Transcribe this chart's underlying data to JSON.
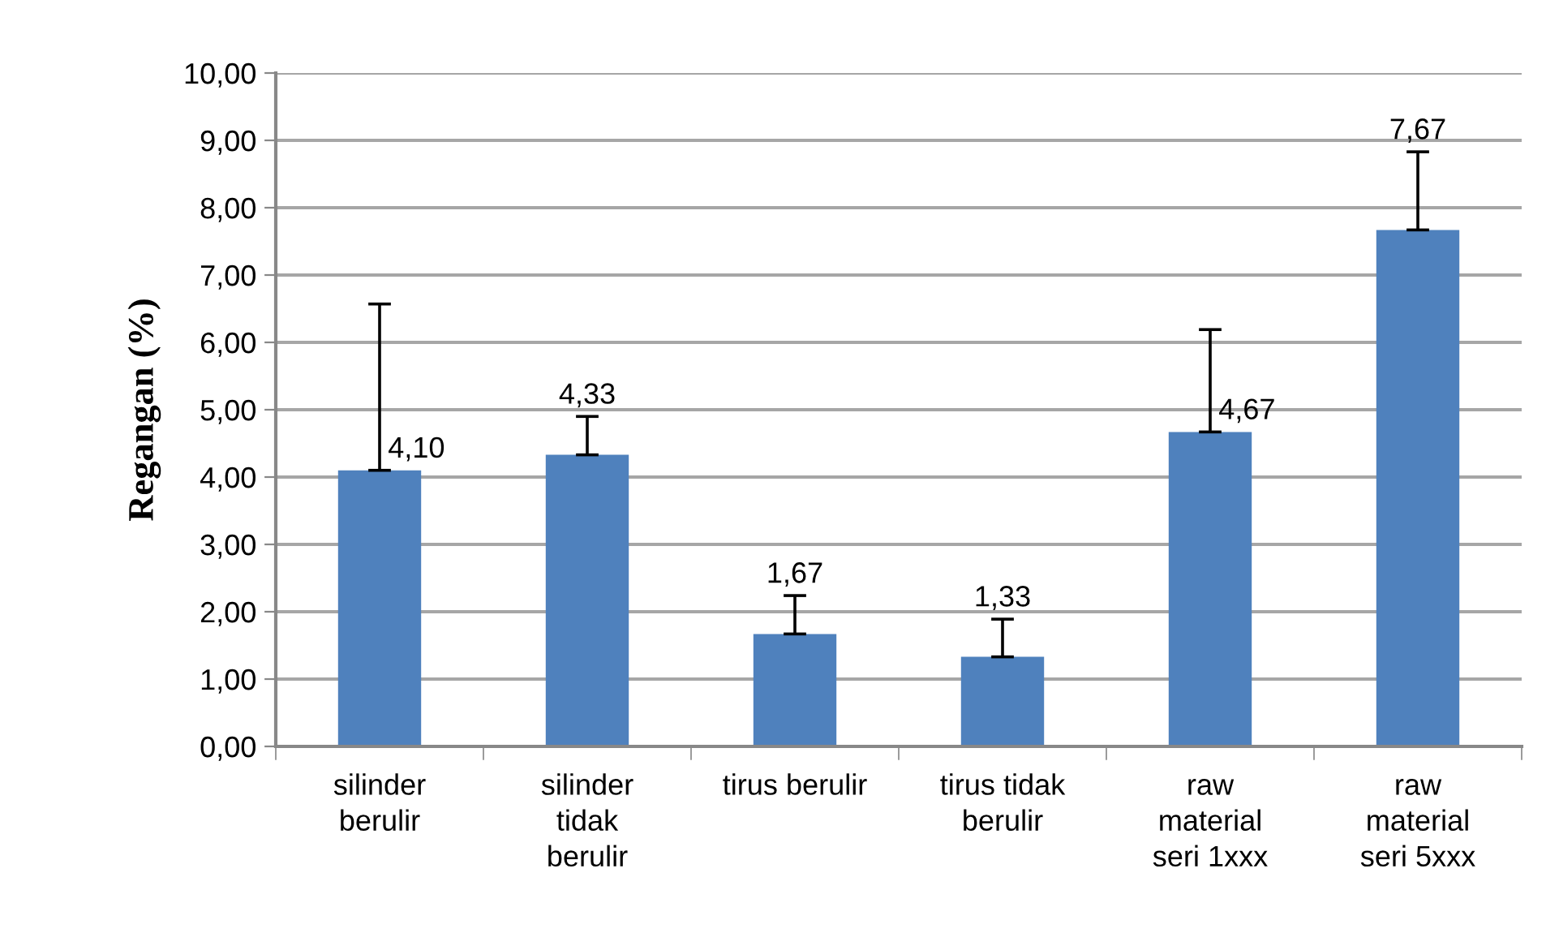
{
  "chart_data": {
    "type": "bar",
    "ylabel": "Regangan (%)",
    "categories": [
      "silinder\nberulir",
      "silinder\ntidak\nberulir",
      "tirus berulir",
      "tirus tidak\nberulir",
      "raw\nmaterial\nseri 1xxx",
      "raw\nmaterial\nseri 5xxx"
    ],
    "values": [
      4.1,
      4.33,
      1.67,
      1.33,
      4.67,
      7.67
    ],
    "errors": [
      [
        4.1,
        6.57
      ],
      [
        4.33,
        4.9
      ],
      [
        1.67,
        2.24
      ],
      [
        1.33,
        1.89
      ],
      [
        4.67,
        6.19
      ],
      [
        7.67,
        8.83
      ]
    ],
    "value_labels": [
      "4,10",
      "4,33",
      "1,67",
      "1,33",
      "4,67",
      "7,67"
    ],
    "color": "#4f81bd",
    "ylim": [
      0,
      10
    ],
    "yticks": [
      {
        "value": 0,
        "label": "0,00"
      },
      {
        "value": 1,
        "label": "1,00"
      },
      {
        "value": 2,
        "label": "2,00"
      },
      {
        "value": 3,
        "label": "3,00"
      },
      {
        "value": 4,
        "label": "4,00"
      },
      {
        "value": 5,
        "label": "5,00"
      },
      {
        "value": 6,
        "label": "6,00"
      },
      {
        "value": 7,
        "label": "7,00"
      },
      {
        "value": 8,
        "label": "8,00"
      },
      {
        "value": 9,
        "label": "9,00"
      },
      {
        "value": 10,
        "label": "10,00"
      }
    ],
    "grid": "y"
  }
}
